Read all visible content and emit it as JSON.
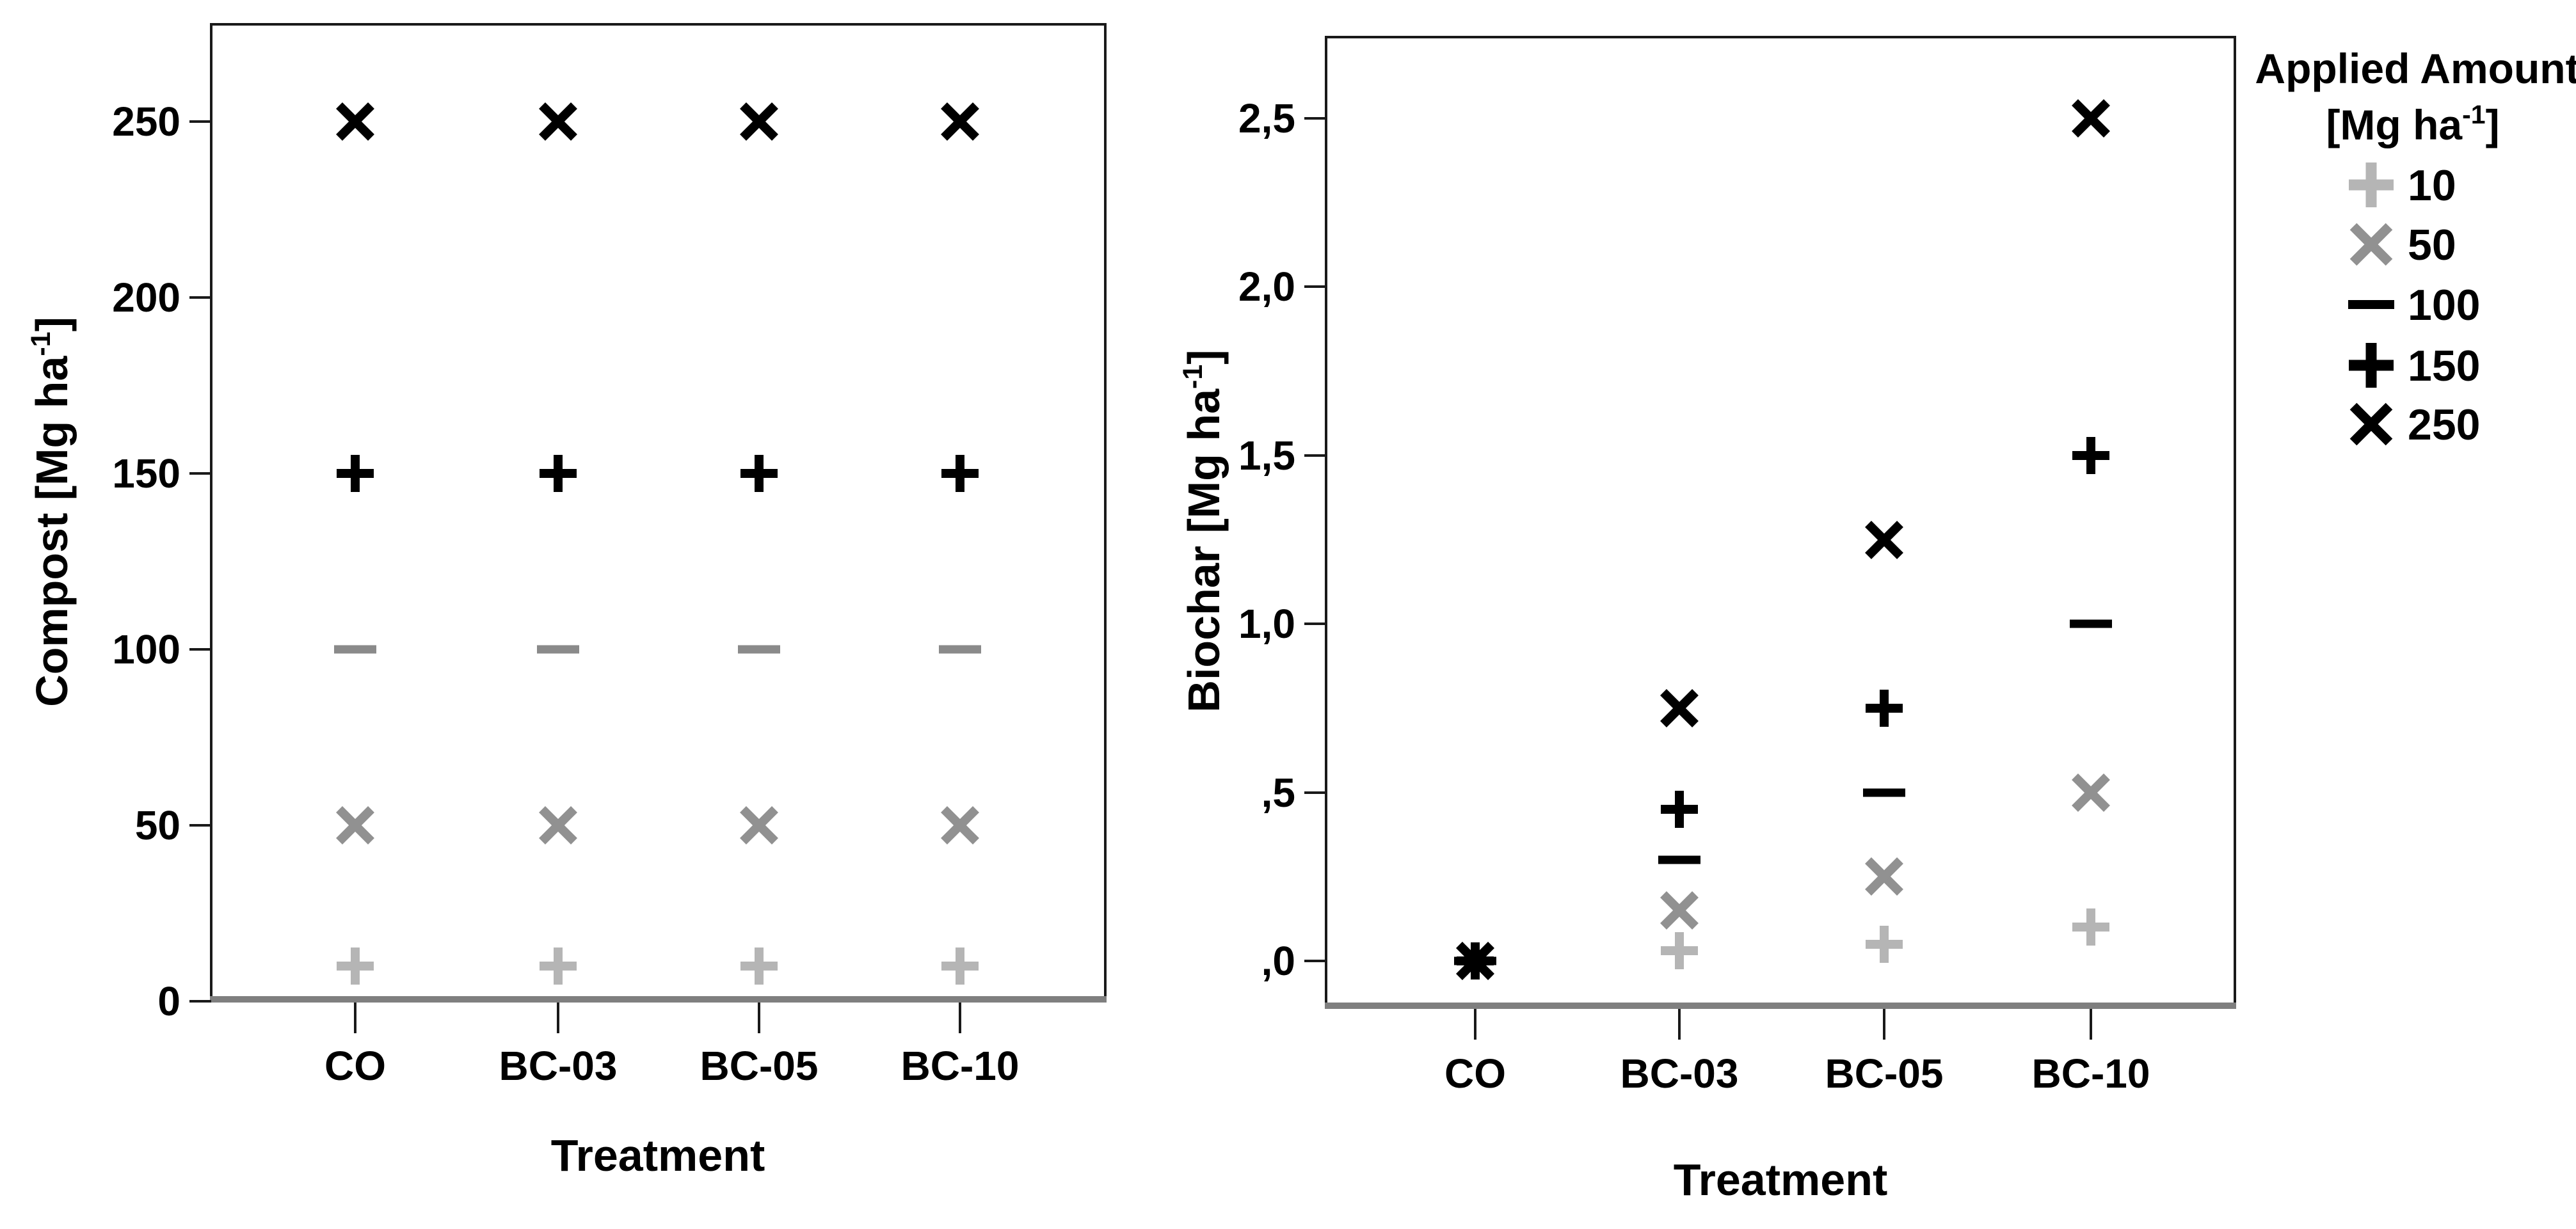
{
  "figure": {
    "background": "#ffffff",
    "frame_color": "#1a1a1a",
    "baseline_color": "#7f7f7f",
    "text_color": "#000000"
  },
  "chart_data": [
    {
      "type": "scatter",
      "id": "compost",
      "title": "",
      "xlabel": "Treatment",
      "ylabel": "Compost [Mg ha⁻¹]",
      "categories": [
        "CO",
        "BC-03",
        "BC-05",
        "BC-10"
      ],
      "ytick_labels": [
        "0",
        "50",
        "100",
        "150",
        "200",
        "250"
      ],
      "ytick_values": [
        0,
        50,
        100,
        150,
        200,
        250
      ],
      "ylim": [
        0,
        277
      ],
      "grid": false,
      "series": [
        {
          "name": "10",
          "marker": "plus",
          "color": "#b5b5b5",
          "values": [
            10,
            10,
            10,
            10
          ]
        },
        {
          "name": "50",
          "marker": "x",
          "color": "#919191",
          "values": [
            50,
            50,
            50,
            50
          ]
        },
        {
          "name": "100",
          "marker": "dash",
          "color": "#8a8a8a",
          "values": [
            100,
            100,
            100,
            100
          ]
        },
        {
          "name": "150",
          "marker": "plus",
          "color": "#000000",
          "values": [
            150,
            150,
            150,
            150
          ]
        },
        {
          "name": "250",
          "marker": "x",
          "color": "#000000",
          "values": [
            250,
            250,
            250,
            250
          ]
        }
      ]
    },
    {
      "type": "scatter",
      "id": "biochar",
      "title": "",
      "xlabel": "Treatment",
      "ylabel": "Biochar [Mg ha⁻¹]",
      "categories": [
        "CO",
        "BC-03",
        "BC-05",
        "BC-10"
      ],
      "ytick_labels": [
        ",0",
        ",5",
        "1,0",
        "1,5",
        "2,0",
        "2,5"
      ],
      "ytick_values": [
        0,
        0.5,
        1.0,
        1.5,
        2.0,
        2.5
      ],
      "ylim": [
        -0.14,
        2.74
      ],
      "grid": false,
      "series": [
        {
          "name": "10",
          "marker": "plus",
          "color": "#b5b5b5",
          "values": [
            0,
            0.03,
            0.05,
            0.1
          ]
        },
        {
          "name": "50",
          "marker": "x",
          "color": "#919191",
          "values": [
            0,
            0.15,
            0.25,
            0.5
          ]
        },
        {
          "name": "100",
          "marker": "dash",
          "color": "#000000",
          "values": [
            0,
            0.3,
            0.5,
            1.0
          ]
        },
        {
          "name": "150",
          "marker": "plus",
          "color": "#000000",
          "values": [
            0,
            0.45,
            0.75,
            1.5
          ]
        },
        {
          "name": "250",
          "marker": "x",
          "color": "#000000",
          "values": [
            0,
            0.75,
            1.25,
            2.5
          ]
        }
      ]
    }
  ],
  "legend": {
    "position": "right",
    "title_lines": [
      "Applied Amount",
      "[Mg ha⁻¹]"
    ],
    "entries": [
      {
        "label": "10",
        "marker": "plus",
        "color": "#b5b5b5"
      },
      {
        "label": "50",
        "marker": "x",
        "color": "#919191"
      },
      {
        "label": "100",
        "marker": "dash",
        "color": "#000000"
      },
      {
        "label": "150",
        "marker": "plus",
        "color": "#000000"
      },
      {
        "label": "250",
        "marker": "x",
        "color": "#000000"
      }
    ]
  }
}
